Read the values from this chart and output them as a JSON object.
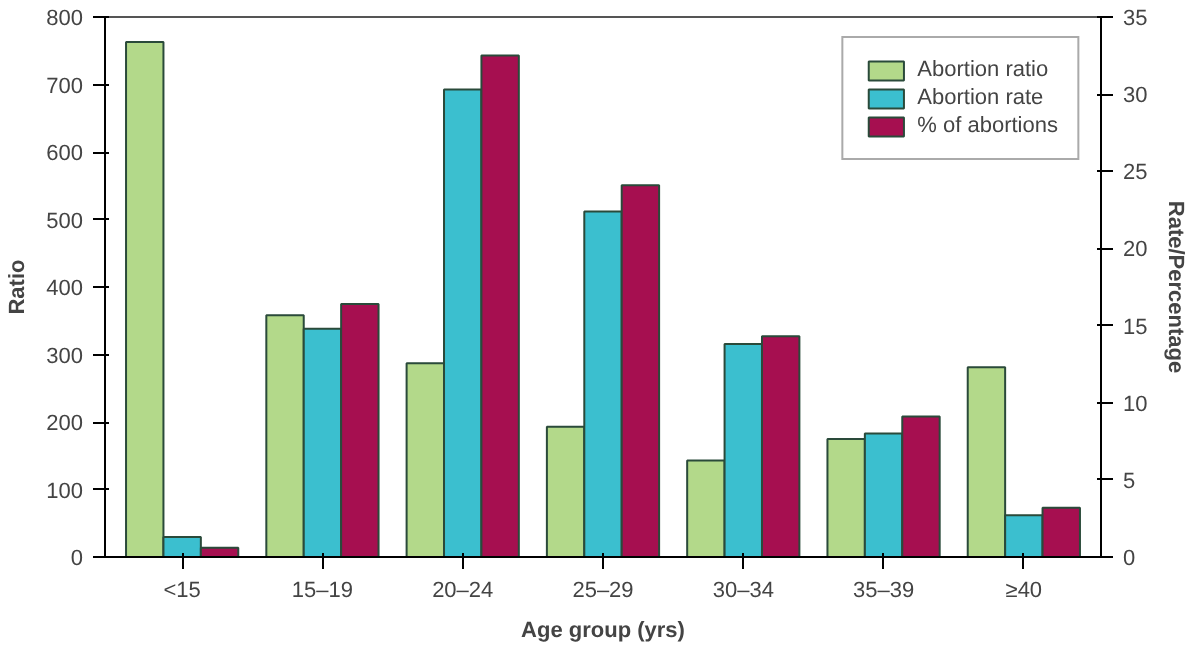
{
  "chart_data": {
    "type": "bar",
    "xlabel": "Age group (yrs)",
    "ylabel": "Ratio",
    "y2label": "Rate/Percentage",
    "categories": [
      "<15",
      "15–19",
      "20–24",
      "25–29",
      "30–34",
      "35–39",
      "≥40"
    ],
    "series": [
      {
        "name": "Abortion ratio",
        "color": "#b3d98a",
        "values": [
          763,
          358,
          287,
          193,
          143,
          175,
          281
        ]
      },
      {
        "name": "Abortion rate",
        "color": "#3bbfcf",
        "values": [
          1.3,
          14.8,
          30.3,
          22.4,
          13.8,
          8.0,
          2.7
        ],
        "axis": "y2"
      },
      {
        "name": "% of abortions",
        "color": "#a60f50",
        "values": [
          0.6,
          16.4,
          32.5,
          24.1,
          14.3,
          9.1,
          3.2
        ],
        "axis": "y2"
      }
    ],
    "ylim": [
      0,
      800
    ],
    "yticks": [
      0,
      100,
      200,
      300,
      400,
      500,
      600,
      700,
      800
    ],
    "y2lim": [
      0,
      35
    ],
    "y2ticks": [
      0,
      5,
      10,
      15,
      20,
      25,
      30,
      35
    ],
    "grid": false,
    "legend": "top right"
  }
}
